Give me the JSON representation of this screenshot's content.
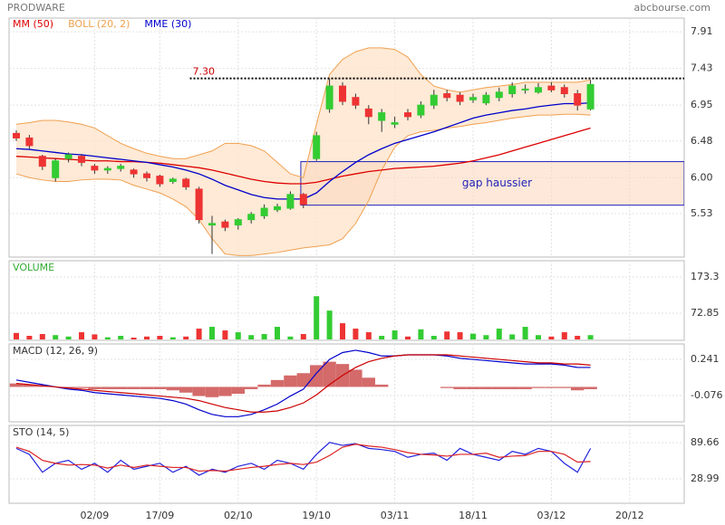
{
  "chart_data": [
    {
      "type": "candlestick",
      "title": "PRODWARE",
      "source": "abcbourse.com",
      "categories": [
        null,
        null,
        null,
        null,
        null,
        null,
        "02/09",
        null,
        null,
        null,
        null,
        "17/09",
        null,
        null,
        null,
        null,
        null,
        "02/10",
        null,
        null,
        null,
        null,
        null,
        "19/10",
        null,
        null,
        null,
        null,
        null,
        "03/11",
        null,
        null,
        null,
        null,
        null,
        "18/11",
        null,
        null,
        null,
        null,
        null,
        "03/12",
        null,
        null,
        null,
        null,
        null,
        "20/12"
      ],
      "open": [
        6.58,
        6.52,
        6.28,
        6.0,
        6.25,
        6.28,
        6.15,
        6.1,
        6.12,
        6.1,
        6.05,
        6.02,
        5.95,
        5.98,
        5.85,
        5.38,
        5.42,
        5.38,
        5.45,
        5.5,
        5.58,
        5.6,
        5.78,
        6.25,
        6.9,
        7.2,
        7.05,
        6.9,
        6.75,
        6.7,
        6.85,
        6.82,
        6.95,
        7.1,
        7.08,
        7.02,
        6.98,
        7.05,
        7.1,
        7.15,
        7.12,
        7.2,
        7.18,
        7.1,
        6.9,
        null,
        null,
        null
      ],
      "high": [
        6.62,
        6.56,
        6.3,
        6.25,
        6.33,
        6.31,
        6.18,
        6.15,
        6.18,
        6.12,
        6.08,
        6.04,
        6.0,
        6.0,
        5.88,
        5.5,
        5.45,
        5.47,
        5.55,
        5.65,
        5.66,
        5.82,
        5.8,
        6.6,
        7.3,
        7.25,
        7.1,
        6.95,
        6.9,
        6.8,
        6.9,
        7.0,
        7.15,
        7.15,
        7.12,
        7.1,
        7.12,
        7.18,
        7.25,
        7.22,
        7.24,
        7.25,
        7.22,
        7.15,
        7.28,
        null,
        null,
        null
      ],
      "low": [
        6.48,
        6.38,
        6.1,
        5.95,
        6.2,
        6.15,
        6.05,
        6.05,
        6.08,
        6.0,
        5.95,
        5.88,
        5.92,
        5.84,
        5.4,
        5.0,
        5.3,
        5.32,
        5.4,
        5.46,
        5.55,
        5.58,
        5.6,
        6.22,
        6.85,
        6.95,
        6.9,
        6.7,
        6.6,
        6.65,
        6.75,
        6.78,
        6.9,
        7.0,
        6.95,
        6.98,
        6.95,
        7.0,
        7.05,
        7.1,
        7.1,
        7.12,
        7.05,
        6.88,
        6.88,
        null,
        null,
        null
      ],
      "close": [
        6.52,
        6.42,
        6.15,
        6.22,
        6.3,
        6.2,
        6.1,
        6.12,
        6.15,
        6.05,
        6.0,
        5.92,
        5.98,
        5.88,
        5.45,
        5.4,
        5.35,
        5.45,
        5.52,
        5.6,
        5.62,
        5.78,
        5.65,
        6.55,
        7.2,
        7.0,
        6.95,
        6.8,
        6.85,
        6.72,
        6.8,
        6.95,
        7.08,
        7.05,
        7.0,
        7.05,
        7.08,
        7.12,
        7.2,
        7.16,
        7.18,
        7.15,
        7.1,
        6.95,
        7.22,
        null,
        null,
        null
      ],
      "up_color": "#33cc33",
      "down_color": "#ee3333",
      "series": [
        {
          "name": "MM (50)",
          "color": "#dd0000",
          "values": [
            6.28,
            6.27,
            6.26,
            6.25,
            6.24,
            6.23,
            6.22,
            6.22,
            6.21,
            6.21,
            6.2,
            6.19,
            6.17,
            6.15,
            6.13,
            6.1,
            6.06,
            6.02,
            5.98,
            5.95,
            5.93,
            5.92,
            5.92,
            5.94,
            5.98,
            6.02,
            6.05,
            6.08,
            6.1,
            6.12,
            6.13,
            6.14,
            6.15,
            6.17,
            6.19,
            6.22,
            6.26,
            6.3,
            6.35,
            6.4,
            6.45,
            6.5,
            6.55,
            6.6,
            6.65,
            null,
            null,
            null
          ]
        },
        {
          "name": "BOLL (20, 2)",
          "color": "#f0a050",
          "fill": "#fde3c8",
          "upper": [
            6.7,
            6.72,
            6.75,
            6.75,
            6.73,
            6.7,
            6.65,
            6.55,
            6.45,
            6.38,
            6.32,
            6.28,
            6.25,
            6.25,
            6.3,
            6.35,
            6.45,
            6.45,
            6.42,
            6.35,
            6.2,
            6.05,
            6.0,
            6.7,
            7.35,
            7.55,
            7.65,
            7.7,
            7.7,
            7.68,
            7.58,
            7.35,
            7.2,
            7.15,
            7.12,
            7.15,
            7.18,
            7.2,
            7.22,
            7.25,
            7.25,
            7.25,
            7.25,
            7.25,
            7.28,
            null,
            null,
            null
          ],
          "lower": [
            6.05,
            6.0,
            5.97,
            5.95,
            5.95,
            5.97,
            5.98,
            5.98,
            5.97,
            5.9,
            5.85,
            5.8,
            5.72,
            5.62,
            5.45,
            5.2,
            5.0,
            4.98,
            4.98,
            5.0,
            5.02,
            5.05,
            5.08,
            5.1,
            5.12,
            5.2,
            5.4,
            5.7,
            6.1,
            6.4,
            6.55,
            6.6,
            6.62,
            6.65,
            6.67,
            6.7,
            6.72,
            6.75,
            6.78,
            6.8,
            6.82,
            6.82,
            6.83,
            6.83,
            6.82,
            null,
            null,
            null
          ]
        },
        {
          "name": "MME (30)",
          "color": "#0000cc",
          "values": [
            6.38,
            6.37,
            6.35,
            6.33,
            6.31,
            6.3,
            6.28,
            6.26,
            6.24,
            6.22,
            6.2,
            6.17,
            6.14,
            6.1,
            6.05,
            5.98,
            5.9,
            5.84,
            5.78,
            5.74,
            5.72,
            5.72,
            5.72,
            5.8,
            5.95,
            6.08,
            6.2,
            6.3,
            6.38,
            6.45,
            6.5,
            6.55,
            6.6,
            6.66,
            6.72,
            6.78,
            6.82,
            6.85,
            6.88,
            6.9,
            6.93,
            6.95,
            6.97,
            6.97,
            6.98,
            null,
            null,
            null
          ]
        }
      ],
      "ylim": [
        4.96,
        8.09
      ],
      "yticks": [
        5.53,
        {
          "value": 6,
          "label": "6.00"
        },
        6.48,
        6.95,
        7.43,
        7.91
      ],
      "grid": true,
      "level": {
        "value": 7.3,
        "label": "7.30",
        "x_from": 13.3,
        "color": "#cc0000"
      },
      "gap": {
        "text": "gap haussier",
        "range": [
          5.64,
          6.21
        ],
        "x_from": 21.8,
        "color": "#2222bb",
        "fill": "#fbd9bf"
      }
    },
    {
      "type": "bar",
      "title": "VOLUME",
      "title_color": "#33aa33",
      "values": [
        18,
        10,
        15,
        12,
        8,
        20,
        14,
        6,
        10,
        5,
        8,
        10,
        6,
        8,
        30,
        35,
        25,
        20,
        12,
        15,
        35,
        8,
        15,
        120,
        80,
        45,
        30,
        20,
        10,
        25,
        8,
        28,
        10,
        22,
        20,
        16,
        12,
        30,
        14,
        35,
        12,
        8,
        20,
        10,
        12,
        null,
        null,
        null
      ],
      "ylim": [
        -2.5,
        218.5
      ],
      "yticks": [
        72.85,
        173.3
      ],
      "grid": true
    },
    {
      "type": "macd",
      "title": "MACD (12, 26, 9)",
      "series": [
        {
          "color": "#0000cc",
          "values": [
            0.06,
            0.04,
            0.02,
            0.0,
            -0.02,
            -0.03,
            -0.05,
            -0.06,
            -0.07,
            -0.08,
            -0.09,
            -0.1,
            -0.12,
            -0.15,
            -0.2,
            -0.24,
            -0.26,
            -0.26,
            -0.24,
            -0.2,
            -0.15,
            -0.08,
            -0.02,
            0.12,
            0.24,
            0.3,
            0.32,
            0.3,
            0.27,
            0.27,
            0.28,
            0.28,
            0.28,
            0.27,
            0.25,
            0.24,
            0.23,
            0.22,
            0.21,
            0.2,
            0.2,
            0.2,
            0.19,
            0.17,
            0.17,
            null,
            null,
            null
          ]
        },
        {
          "color": "#cc0000",
          "values": [
            0.03,
            0.02,
            0.01,
            0.0,
            -0.01,
            -0.02,
            -0.03,
            -0.04,
            -0.05,
            -0.06,
            -0.07,
            -0.08,
            -0.09,
            -0.1,
            -0.12,
            -0.15,
            -0.18,
            -0.2,
            -0.22,
            -0.22,
            -0.21,
            -0.18,
            -0.14,
            -0.07,
            0.02,
            0.1,
            0.17,
            0.22,
            0.25,
            0.27,
            0.28,
            0.28,
            0.28,
            0.28,
            0.27,
            0.26,
            0.25,
            0.24,
            0.23,
            0.22,
            0.21,
            0.21,
            0.2,
            0.2,
            0.19,
            null,
            null,
            null
          ]
        }
      ],
      "histogram": {
        "color": "#d46a6a",
        "values": [
          0.03,
          0.02,
          0.01,
          0,
          -0.01,
          -0.01,
          -0.02,
          -0.02,
          -0.02,
          -0.02,
          -0.02,
          -0.02,
          -0.03,
          -0.05,
          -0.08,
          -0.09,
          -0.08,
          -0.06,
          -0.02,
          0.02,
          0.06,
          0.1,
          0.12,
          0.19,
          0.22,
          0.2,
          0.15,
          0.08,
          0.02,
          0,
          0,
          0,
          0,
          -0.01,
          -0.02,
          -0.02,
          -0.02,
          -0.02,
          -0.02,
          -0.02,
          -0.01,
          -0.01,
          -0.01,
          -0.03,
          -0.02,
          null,
          null,
          null
        ]
      },
      "ylim": [
        -0.305,
        0.375
      ],
      "yticks": [
        -0.076,
        0.241
      ],
      "grid": true
    },
    {
      "type": "line",
      "title": "STO (14, 5)",
      "series": [
        {
          "color": "#2222dd",
          "values": [
            80,
            70,
            40,
            55,
            60,
            45,
            55,
            40,
            60,
            45,
            50,
            55,
            40,
            50,
            35,
            45,
            40,
            50,
            55,
            45,
            60,
            55,
            45,
            70,
            90,
            85,
            88,
            80,
            78,
            75,
            65,
            70,
            72,
            60,
            80,
            70,
            65,
            60,
            75,
            70,
            80,
            75,
            55,
            40,
            80,
            null,
            null,
            null
          ]
        },
        {
          "color": "#dd2222",
          "values": [
            82,
            75,
            60,
            55,
            52,
            53,
            52,
            47,
            52,
            48,
            52,
            50,
            48,
            48,
            42,
            43,
            42,
            45,
            48,
            50,
            53,
            55,
            53,
            57,
            68,
            82,
            87,
            84,
            82,
            78,
            73,
            70,
            69,
            67,
            70,
            70,
            72,
            65,
            67,
            68,
            75,
            75,
            70,
            57,
            58,
            null,
            null,
            null
          ]
        }
      ],
      "ylim": [
        -12,
        118.5
      ],
      "yticks": [
        28.99,
        89.66
      ],
      "grid": true
    }
  ]
}
